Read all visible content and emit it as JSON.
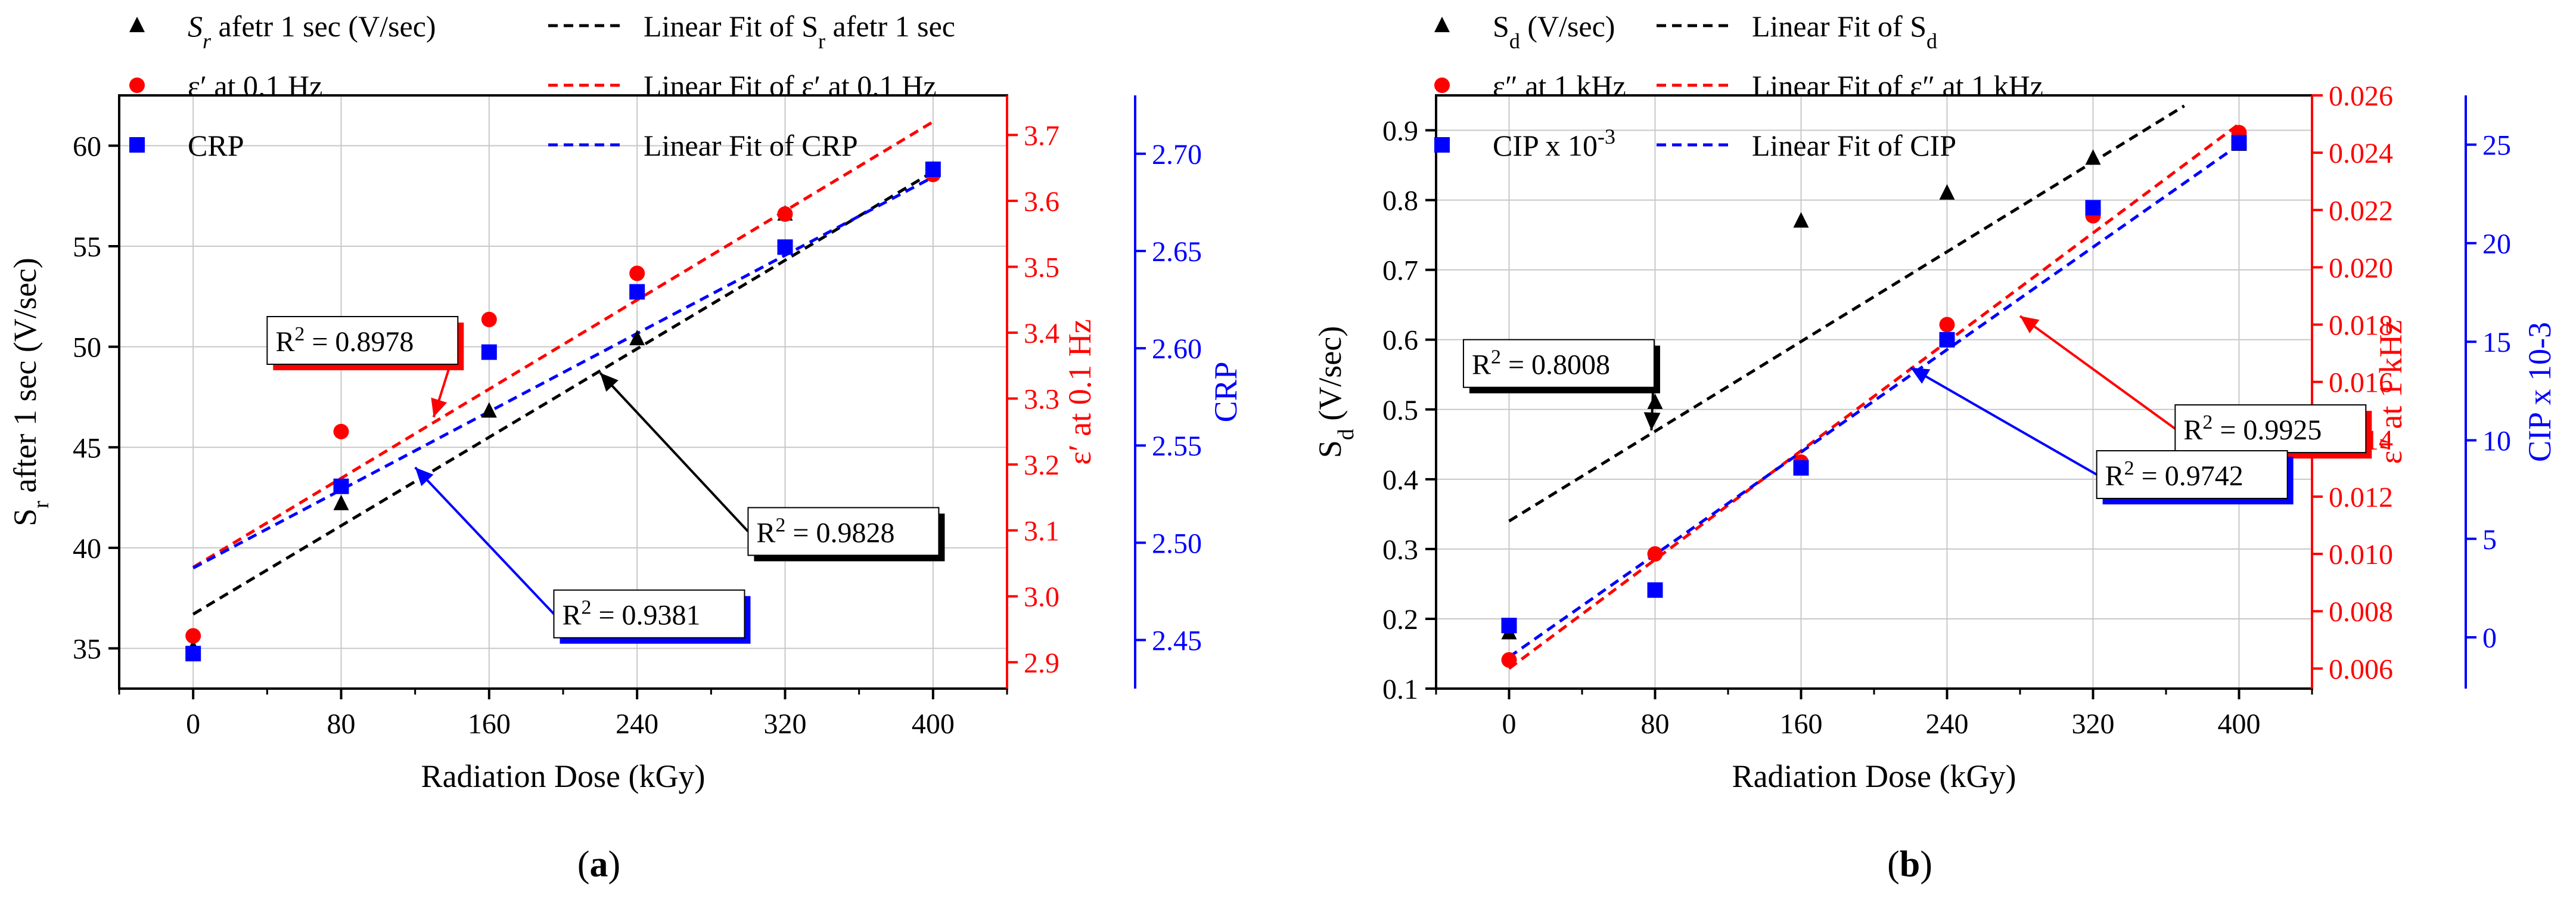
{
  "chart_data": [
    {
      "type": "scatter",
      "panel_label": "(a)",
      "xlabel": "Radiation Dose (kGy)",
      "xlim": [
        -40,
        440
      ],
      "xticks": [
        0,
        80,
        160,
        240,
        320,
        400
      ],
      "axes": {
        "left": {
          "label": "S_r after 1 sec (V/sec)",
          "color": "#000000",
          "lim": [
            33,
            62.5
          ],
          "ticks": [
            35,
            40,
            45,
            50,
            55,
            60
          ]
        },
        "right1": {
          "label": "ε′ at 0.1 Hz",
          "color": "#ff0000",
          "lim": [
            2.86,
            3.76
          ],
          "ticks": [
            2.9,
            3.0,
            3.1,
            3.2,
            3.3,
            3.4,
            3.5,
            3.6,
            3.7
          ]
        },
        "right2": {
          "label": "CRP",
          "color": "#0000ff",
          "lim": [
            2.425,
            2.73
          ],
          "ticks": [
            2.45,
            2.5,
            2.55,
            2.6,
            2.65,
            2.7
          ]
        }
      },
      "series": [
        {
          "name": "Sr afetr 1 sec (V/sec)",
          "legend_main": "S",
          "legend_sub": "r",
          "legend_rest": " afetr 1 sec (V/sec)",
          "axis": "left",
          "color": "#000000",
          "marker": "triangle",
          "x": [
            0,
            80,
            160,
            240,
            320,
            400
          ],
          "y": [
            35.0,
            42.2,
            46.8,
            50.4,
            56.6,
            58.8
          ]
        },
        {
          "name": "ε′ at 0.1 Hz",
          "legend_main": "ε′ at 0.1 Hz",
          "legend_sub": "",
          "legend_rest": "",
          "axis": "right1",
          "color": "#ff0000",
          "marker": "circle",
          "x": [
            0,
            80,
            160,
            240,
            320,
            400
          ],
          "y": [
            2.94,
            3.25,
            3.42,
            3.49,
            3.58,
            3.64
          ]
        },
        {
          "name": "CRP",
          "legend_main": "CRP",
          "legend_sub": "",
          "legend_rest": "",
          "axis": "right2",
          "color": "#0000ff",
          "marker": "square",
          "x": [
            0,
            80,
            160,
            240,
            320,
            400
          ],
          "y": [
            2.443,
            2.529,
            2.598,
            2.629,
            2.652,
            2.692
          ]
        }
      ],
      "fits": [
        {
          "name": "Linear Fit of Sr afetr 1 sec",
          "legend_main": "Linear Fit of S",
          "legend_sub": "r",
          "legend_rest": " afetr 1 sec",
          "axis": "left",
          "color": "#000000",
          "x": [
            0,
            400
          ],
          "y": [
            36.7,
            58.7
          ]
        },
        {
          "name": "Linear Fit of ε′ at 0.1 Hz",
          "legend_main": "Linear Fit of ε′ at 0.1 Hz",
          "legend_sub": "",
          "legend_rest": "",
          "axis": "right1",
          "color": "#ff0000",
          "x": [
            0,
            400
          ],
          "y": [
            3.044,
            3.72
          ]
        },
        {
          "name": "Linear Fit of CRP",
          "legend_main": "Linear Fit of CRP",
          "legend_sub": "",
          "legend_rest": "",
          "axis": "right2",
          "color": "#0000ff",
          "x": [
            0,
            400
          ],
          "y": [
            2.487,
            2.688
          ]
        }
      ],
      "annotations": [
        {
          "prefix": "R",
          "sup": "2",
          "value": " = 0.8978",
          "color": "#ff0000",
          "text_x": 40,
          "text_y": 51.5,
          "arrow_to_x": 130,
          "arrow_to_y": 46.5
        },
        {
          "prefix": "R",
          "sup": "2",
          "value": " = 0.9828",
          "color": "#000000",
          "text_x": 300,
          "text_y": 42.0,
          "arrow_to_x": 220,
          "arrow_to_y": 48.7
        },
        {
          "prefix": "R",
          "sup": "2",
          "value": " = 0.9381",
          "color": "#0000ff",
          "text_x": 195,
          "text_y": 37.9,
          "arrow_to_x": 120,
          "arrow_to_y": 44.0
        }
      ]
    },
    {
      "type": "scatter",
      "panel_label": "(b)",
      "xlabel": "Radiation Dose (kGy)",
      "xlim": [
        -40,
        440
      ],
      "xticks": [
        0,
        80,
        160,
        240,
        320,
        400
      ],
      "axes": {
        "left": {
          "label": "S_d (V/sec)",
          "color": "#000000",
          "lim": [
            0.1,
            0.95
          ],
          "ticks": [
            0.1,
            0.2,
            0.3,
            0.4,
            0.5,
            0.6,
            0.7,
            0.8,
            0.9
          ]
        },
        "right1": {
          "label": "ε″ at 1 kHz",
          "color": "#ff0000",
          "lim": [
            0.0053,
            0.026
          ],
          "ticks": [
            0.006,
            0.008,
            0.01,
            0.012,
            0.014,
            0.016,
            0.018,
            0.02,
            0.022,
            0.024,
            0.026
          ]
        },
        "right2": {
          "label": "CIP x 10-3",
          "color": "#0000ff",
          "lim": [
            -2.6,
            27.5
          ],
          "ticks": [
            0,
            5,
            10,
            15,
            20,
            25
          ]
        }
      },
      "series": [
        {
          "name": "Sd (V/sec)",
          "legend_main": "S",
          "legend_sub": "d",
          "legend_rest": " (V/sec)",
          "axis": "left",
          "color": "#000000",
          "marker": "triangle",
          "x": [
            0,
            80,
            160,
            240,
            320,
            400
          ],
          "y": [
            0.18,
            0.51,
            0.77,
            0.81,
            0.86,
            0.88
          ]
        },
        {
          "name": "ε″ at 1 kHz",
          "legend_main": "ε″ at 1 kHz",
          "legend_sub": "",
          "legend_rest": "",
          "axis": "right1",
          "color": "#ff0000",
          "marker": "circle",
          "x": [
            0,
            80,
            160,
            240,
            320,
            400
          ],
          "y": [
            0.0063,
            0.01,
            0.0132,
            0.018,
            0.0218,
            0.0247
          ]
        },
        {
          "name": "CIP x 10-3",
          "legend_main": "CIP x 10",
          "legend_sub": "",
          "legend_sup": "-3",
          "legend_rest": "",
          "axis": "right2",
          "color": "#0000ff",
          "marker": "square",
          "x": [
            0,
            80,
            160,
            240,
            320,
            400
          ],
          "y": [
            0.6,
            2.4,
            8.6,
            15.1,
            21.8,
            25.1
          ]
        }
      ],
      "fits": [
        {
          "name": "Linear Fit of Sd",
          "legend_main": "Linear Fit of S",
          "legend_sub": "d",
          "legend_rest": "",
          "axis": "left",
          "color": "#000000",
          "x": [
            0,
            370
          ],
          "y": [
            0.34,
            0.935
          ]
        },
        {
          "name": "Linear Fit of ε″ at 1 kHz",
          "legend_main": "Linear Fit of ε″ at 1 kHz",
          "legend_sub": "",
          "legend_rest": "",
          "axis": "right1",
          "color": "#ff0000",
          "x": [
            0,
            400
          ],
          "y": [
            0.006,
            0.025
          ]
        },
        {
          "name": "Linear Fit of CIP",
          "legend_main": "Linear Fit of CIP",
          "legend_sub": "",
          "legend_rest": "",
          "axis": "right2",
          "color": "#0000ff",
          "x": [
            0,
            400
          ],
          "y": [
            -1.0,
            25.0
          ]
        }
      ],
      "annotations": [
        {
          "prefix": "R",
          "sup": "2",
          "value": " = 0.8008",
          "color": "#000000",
          "text_x": -25,
          "text_y": 0.6,
          "arrow_to_x": 78,
          "arrow_to_y": 0.47
        },
        {
          "prefix": "R",
          "sup": "2",
          "value": " = 0.9925",
          "color": "#ff0000",
          "text_x": 365,
          "text_y": 0.0152,
          "arrow_to_x": 280,
          "arrow_to_y": 0.0183
        },
        {
          "prefix": "R",
          "sup": "2",
          "value": " = 0.9742",
          "color": "#0000ff",
          "text_x": 322,
          "text_y": 0.0136,
          "arrow_to_x": 220,
          "arrow_to_y": 0.0165
        }
      ]
    }
  ]
}
